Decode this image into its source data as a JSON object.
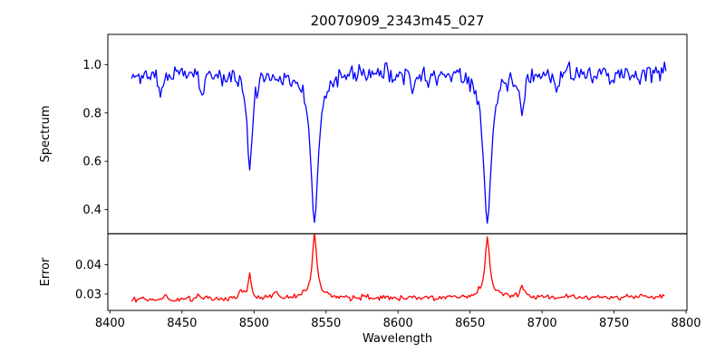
{
  "figure": {
    "title": "20070909_2343m45_027",
    "background": "#ffffff"
  },
  "chart_data": [
    {
      "type": "line",
      "series_name": "spectrum",
      "title": "20070909_2343m45_027",
      "ylabel": "Spectrum",
      "color": "#0000ff",
      "grid": false,
      "legend": "none",
      "xlim": [
        8398.5,
        8800.6
      ],
      "ylim": [
        0.3,
        1.125
      ],
      "yticks": [
        {
          "v": 0.4,
          "label": "0.4"
        },
        {
          "v": 0.6,
          "label": "0.6"
        },
        {
          "v": 0.8,
          "label": "0.8"
        },
        {
          "v": 1.0,
          "label": "1.0"
        }
      ],
      "x_start": 8415,
      "x_end": 8786,
      "x_step": 1,
      "continuum": 0.965,
      "noise_sigma": 0.019,
      "absorption_lines": [
        {
          "center": 8435,
          "depth": 0.11,
          "width": 1.4
        },
        {
          "center": 8464,
          "depth": 0.085,
          "width": 1.3
        },
        {
          "center": 8497,
          "depth": 0.39,
          "width": 2.2
        },
        {
          "center": 8542,
          "depth": 0.615,
          "width": 3.2
        },
        {
          "center": 8610,
          "depth": 0.075,
          "width": 1.2
        },
        {
          "center": 8662,
          "depth": 0.62,
          "width": 3.2
        },
        {
          "center": 8686,
          "depth": 0.16,
          "width": 1.8
        },
        {
          "center": 8710,
          "depth": 0.085,
          "width": 1.3
        },
        {
          "center": 8750,
          "depth": 0.06,
          "width": 1.2
        },
        {
          "center": 8768,
          "depth": 0.06,
          "width": 1.2
        }
      ]
    },
    {
      "type": "line",
      "series_name": "error",
      "ylabel": "Error",
      "xlabel": "Wavelength",
      "color": "#ff0000",
      "grid": false,
      "legend": "none",
      "xlim": [
        8398.5,
        8800.6
      ],
      "ylim": [
        0.0244,
        0.0506
      ],
      "yticks": [
        {
          "v": 0.03,
          "label": "0.03"
        },
        {
          "v": 0.04,
          "label": "0.04"
        }
      ],
      "xticks": [
        {
          "v": 8400,
          "label": "8400"
        },
        {
          "v": 8450,
          "label": "8450"
        },
        {
          "v": 8500,
          "label": "8500"
        },
        {
          "v": 8550,
          "label": "8550"
        },
        {
          "v": 8600,
          "label": "8600"
        },
        {
          "v": 8650,
          "label": "8650"
        },
        {
          "v": 8700,
          "label": "8700"
        },
        {
          "v": 8750,
          "label": "8750"
        },
        {
          "v": 8800,
          "label": "8800"
        }
      ],
      "x_start": 8415,
      "x_end": 8785,
      "x_step": 1,
      "baseline_start": 0.0281,
      "baseline_end": 0.0291,
      "noise_sigma": 0.00042,
      "spikes": [
        {
          "center": 8438,
          "height": 0.0012,
          "width": 2.0
        },
        {
          "center": 8462,
          "height": 0.0016,
          "width": 1.5
        },
        {
          "center": 8491,
          "height": 0.002,
          "width": 2.0
        },
        {
          "center": 8497,
          "height": 0.008,
          "width": 1.4
        },
        {
          "center": 8514,
          "height": 0.0015,
          "width": 2.0
        },
        {
          "center": 8542,
          "height": 0.0205,
          "width": 1.8
        },
        {
          "center": 8542,
          "height": 0.002,
          "width": 7.0
        },
        {
          "center": 8662,
          "height": 0.0193,
          "width": 1.8
        },
        {
          "center": 8662,
          "height": 0.0018,
          "width": 7.0
        },
        {
          "center": 8686,
          "height": 0.004,
          "width": 1.5
        }
      ]
    }
  ]
}
